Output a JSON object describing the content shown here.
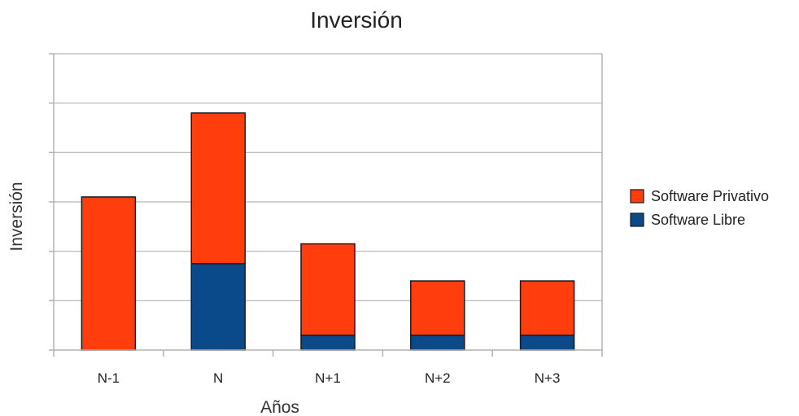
{
  "chart_data": {
    "type": "bar",
    "stacked": true,
    "title": "Inversión",
    "xlabel": "Años",
    "ylabel": "Inversión",
    "categories": [
      "N-1",
      "N",
      "N+1",
      "N+2",
      "N+3"
    ],
    "series": [
      {
        "name": "Software Libre",
        "color": "#0a4a8a",
        "values": [
          0,
          1.75,
          0.3,
          0.3,
          0.3
        ]
      },
      {
        "name": "Software Privativo",
        "color": "#ff3d0d",
        "values": [
          3.1,
          3.05,
          1.85,
          1.1,
          1.1
        ]
      }
    ],
    "legend_order": [
      "Software Privativo",
      "Software Libre"
    ],
    "ylim": [
      0,
      6
    ],
    "y_tick_labels_shown": false,
    "grid": true,
    "legend_position": "right"
  }
}
